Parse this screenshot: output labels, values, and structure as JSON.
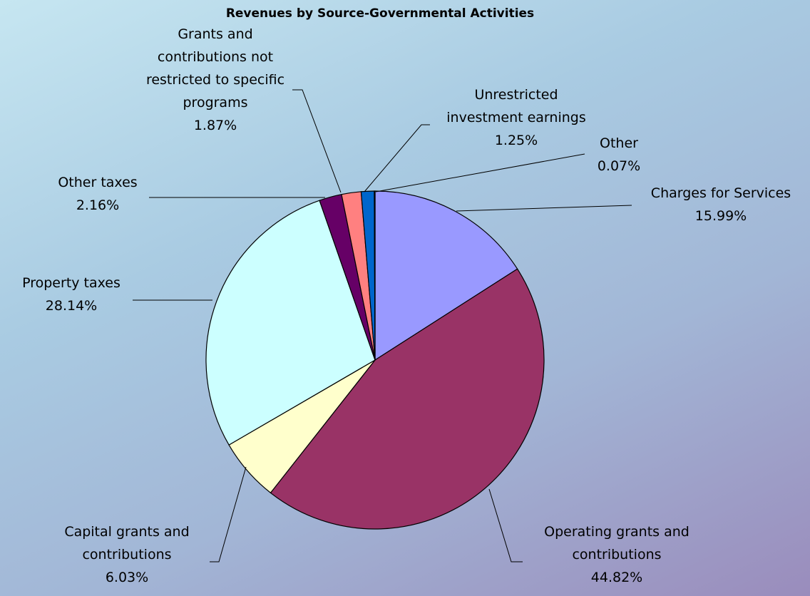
{
  "chart_data": {
    "type": "pie",
    "title": "Revenues by Source-Governmental Activities",
    "start_angle_deg": 0,
    "direction": "clockwise",
    "slices": [
      {
        "label_lines": [
          "Charges for Services"
        ],
        "value_label": "15.99%",
        "value": 15.99,
        "color": "#9999ff"
      },
      {
        "label_lines": [
          "Operating grants and",
          "contributions"
        ],
        "value_label": "44.82%",
        "value": 44.82,
        "color": "#993366"
      },
      {
        "label_lines": [
          "Capital grants and",
          "contributions"
        ],
        "value_label": "6.03%",
        "value": 6.03,
        "color": "#ffffcc"
      },
      {
        "label_lines": [
          "Property taxes"
        ],
        "value_label": "28.14%",
        "value": 28.14,
        "color": "#ccffff"
      },
      {
        "label_lines": [
          "Other taxes"
        ],
        "value_label": "2.16%",
        "value": 2.16,
        "color": "#660066"
      },
      {
        "label_lines": [
          "Grants and",
          "contributions not",
          "restricted to specific",
          "programs"
        ],
        "value_label": "1.87%",
        "value": 1.87,
        "color": "#ff8080"
      },
      {
        "label_lines": [
          "Unrestricted",
          "investment earnings"
        ],
        "value_label": "1.25%",
        "value": 1.25,
        "color": "#0066cc"
      },
      {
        "label_lines": [
          "Other"
        ],
        "value_label": "0.07%",
        "value": 0.07,
        "color": "#ccccff"
      }
    ]
  }
}
